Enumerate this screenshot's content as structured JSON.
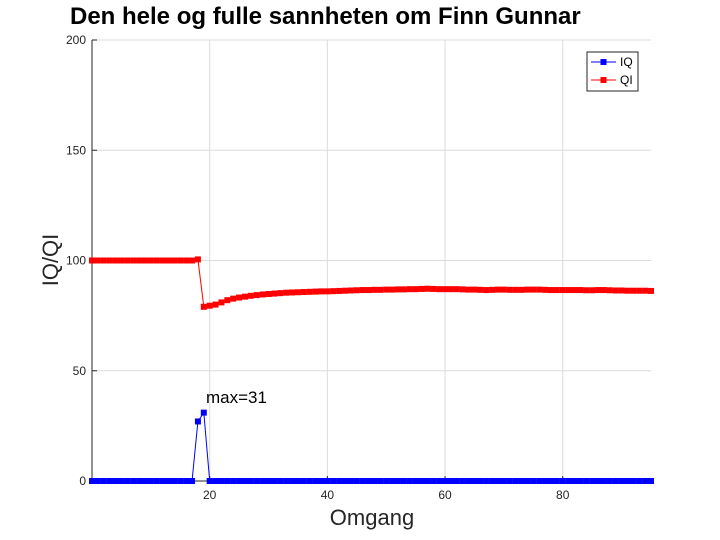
{
  "chart_data": {
    "type": "line",
    "title": "Den hele og fulle sannheten om Finn Gunnar",
    "xlabel": "Omgang",
    "ylabel": "IQ/QI",
    "xlim": [
      0,
      95
    ],
    "ylim": [
      0,
      200
    ],
    "xticks": [
      20,
      40,
      60,
      80
    ],
    "yticks": [
      0,
      50,
      100,
      150,
      200
    ],
    "grid": true,
    "legend": "top-right",
    "annotation": {
      "text": "max=31",
      "x": 19,
      "y": 31
    },
    "series": [
      {
        "name": "IQ",
        "color": "#0000ff",
        "marker": "square",
        "x": [
          0,
          1,
          2,
          3,
          4,
          5,
          6,
          7,
          8,
          9,
          10,
          11,
          12,
          13,
          14,
          15,
          16,
          17,
          18,
          19,
          20,
          21,
          22,
          23,
          24,
          25,
          26,
          27,
          28,
          29,
          30,
          31,
          32,
          33,
          34,
          35,
          36,
          37,
          38,
          39,
          40,
          41,
          42,
          43,
          44,
          45,
          46,
          47,
          48,
          49,
          50,
          51,
          52,
          53,
          54,
          55,
          56,
          57,
          58,
          59,
          60,
          61,
          62,
          63,
          64,
          65,
          66,
          67,
          68,
          69,
          70,
          71,
          72,
          73,
          74,
          75,
          76,
          77,
          78,
          79,
          80,
          81,
          82,
          83,
          84,
          85,
          86,
          87,
          88,
          89,
          90,
          91,
          92,
          93,
          94,
          95
        ],
        "y": [
          0,
          0,
          0,
          0,
          0,
          0,
          0,
          0,
          0,
          0,
          0,
          0,
          0,
          0,
          0,
          0,
          0,
          0,
          27,
          31,
          0,
          0,
          0,
          0,
          0,
          0,
          0,
          0,
          0,
          0,
          0,
          0,
          0,
          0,
          0,
          0,
          0,
          0,
          0,
          0,
          0,
          0,
          0,
          0,
          0,
          0,
          0,
          0,
          0,
          0,
          0,
          0,
          0,
          0,
          0,
          0,
          0,
          0,
          0,
          0,
          0,
          0,
          0,
          0,
          0,
          0,
          0,
          0,
          0,
          0,
          0,
          0,
          0,
          0,
          0,
          0,
          0,
          0,
          0,
          0,
          0,
          0,
          0,
          0,
          0,
          0,
          0,
          0,
          0,
          0,
          0,
          0,
          0,
          0,
          0,
          0
        ]
      },
      {
        "name": "QI",
        "color": "#ff0000",
        "marker": "square",
        "x": [
          0,
          1,
          2,
          3,
          4,
          5,
          6,
          7,
          8,
          9,
          10,
          11,
          12,
          13,
          14,
          15,
          16,
          17,
          18,
          19,
          20,
          21,
          22,
          23,
          24,
          25,
          26,
          27,
          28,
          29,
          30,
          31,
          32,
          33,
          34,
          35,
          36,
          37,
          38,
          39,
          40,
          41,
          42,
          43,
          44,
          45,
          46,
          47,
          48,
          49,
          50,
          51,
          52,
          53,
          54,
          55,
          56,
          57,
          58,
          59,
          60,
          61,
          62,
          63,
          64,
          65,
          66,
          67,
          68,
          69,
          70,
          71,
          72,
          73,
          74,
          75,
          76,
          77,
          78,
          79,
          80,
          81,
          82,
          83,
          84,
          85,
          86,
          87,
          88,
          89,
          90,
          91,
          92,
          93,
          94,
          95
        ],
        "y": [
          100,
          100,
          100,
          100,
          100,
          100,
          100,
          100,
          100,
          100,
          100,
          100,
          100,
          100,
          100,
          100,
          100,
          100,
          100.5,
          79,
          79.5,
          80,
          81,
          82,
          82.7,
          83.2,
          83.6,
          84,
          84.3,
          84.6,
          84.8,
          85,
          85.2,
          85.4,
          85.5,
          85.6,
          85.7,
          85.8,
          85.9,
          86,
          86,
          86.1,
          86.2,
          86.3,
          86.4,
          86.5,
          86.6,
          86.6,
          86.7,
          86.7,
          86.8,
          86.8,
          86.9,
          86.9,
          87,
          87,
          87.1,
          87.2,
          87.1,
          87,
          87,
          87,
          87,
          86.9,
          86.8,
          86.8,
          86.7,
          86.6,
          86.7,
          86.8,
          86.8,
          86.7,
          86.7,
          86.7,
          86.8,
          86.8,
          86.8,
          86.7,
          86.6,
          86.6,
          86.6,
          86.6,
          86.6,
          86.6,
          86.5,
          86.5,
          86.6,
          86.6,
          86.5,
          86.4,
          86.4,
          86.3,
          86.3,
          86.3,
          86.3,
          86.2
        ]
      }
    ]
  }
}
